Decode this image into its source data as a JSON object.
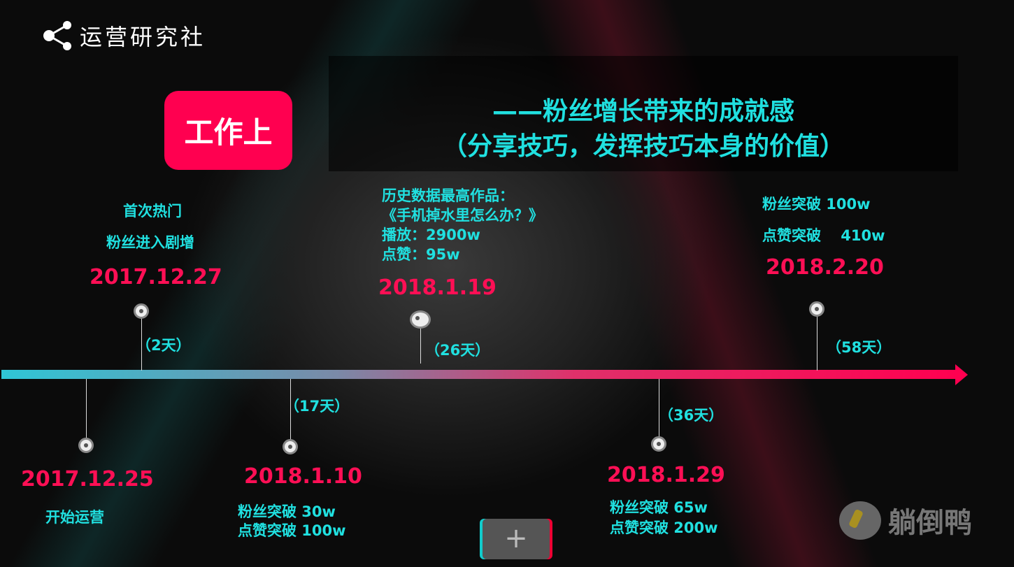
{
  "logo": {
    "icon": "share-icon",
    "text": "运营研究社"
  },
  "tag": "工作上",
  "title": {
    "line1": "——粉丝增长带来的成就感",
    "line2": "（分享技巧，发挥技巧本身的价值）"
  },
  "colors": {
    "accent_cyan": "#20e0e0",
    "accent_pink": "#ff0050"
  },
  "events": [
    {
      "date": "2017.12.25",
      "lines": [
        "开始运营"
      ]
    },
    {
      "date": "2017.12.27",
      "lines": [
        "首次热门",
        "粉丝进入剧增"
      ]
    },
    {
      "date": "2018.1.10",
      "lines": [
        "粉丝突破 30w",
        "点赞突破 100w"
      ]
    },
    {
      "date": "2018.1.19",
      "lines": [
        "历史数据最高作品：",
        "《手机掉水里怎么办？》",
        "播放：2900w",
        "点赞：95w"
      ]
    },
    {
      "date": "2018.1.29",
      "lines": [
        "粉丝突破 65w",
        "点赞突破 200w"
      ]
    },
    {
      "date": "2018.2.20",
      "lines": [
        "粉丝突破 100w",
        "点赞突破　 410w"
      ]
    }
  ],
  "durations": [
    "（2天）",
    "（17天）",
    "（26天）",
    "（36天）",
    "（58天）"
  ],
  "plus_button": "+",
  "watermark": "躺倒鸭"
}
